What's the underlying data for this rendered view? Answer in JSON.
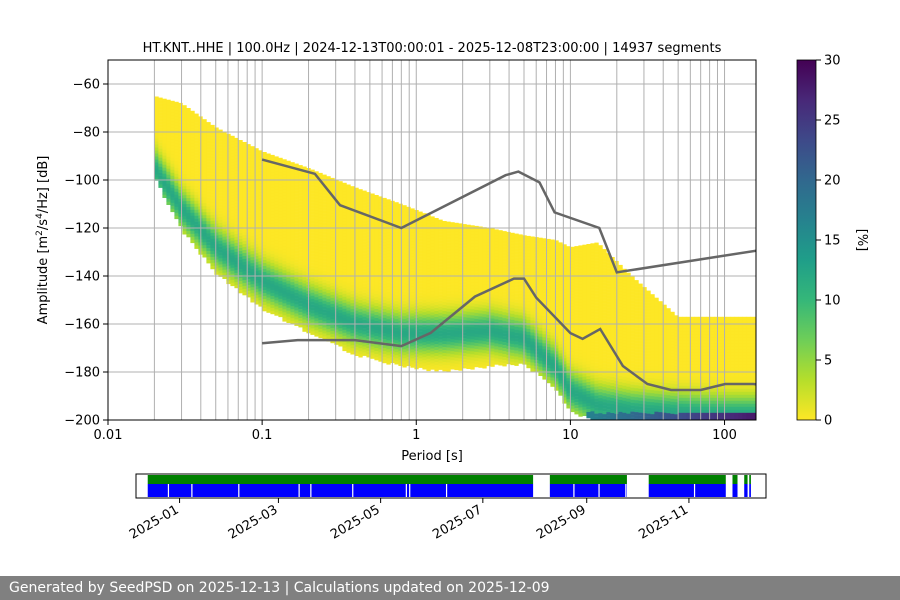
{
  "chart_data": {
    "type": "heatmap",
    "title": "HT.KNT..HHE | 100.0Hz | 2024-12-13T00:00:01 - 2025-12-08T23:00:00 | 14937 segments",
    "xlabel": "Period [s]",
    "ylabel_parts": [
      "Amplitude [m",
      "2",
      "/s",
      "4",
      "/Hz] [dB]"
    ],
    "x_scale": "log",
    "xlim": [
      0.01,
      160
    ],
    "ylim": [
      -200,
      -50
    ],
    "x_ticks": [
      {
        "value": 0.01,
        "label": "0.01"
      },
      {
        "value": 0.1,
        "label": "0.1"
      },
      {
        "value": 1,
        "label": "1"
      },
      {
        "value": 10,
        "label": "10"
      },
      {
        "value": 100,
        "label": "100"
      }
    ],
    "y_ticks": [
      -200,
      -180,
      -160,
      -140,
      -120,
      -100,
      -80,
      -60
    ],
    "vertical_gridlines": [
      0.02,
      0.03,
      0.04,
      0.05,
      0.06,
      0.07,
      0.08,
      0.09,
      0.1,
      0.2,
      0.3,
      0.4,
      0.5,
      0.6,
      0.7,
      0.8,
      0.9,
      1,
      2,
      3,
      4,
      5,
      6,
      7,
      8,
      9,
      10,
      20,
      30,
      40,
      50,
      60,
      70,
      80,
      90,
      100
    ],
    "colorbar": {
      "label": "[%]",
      "min": 0,
      "max": 30,
      "ticks": [
        0,
        5,
        10,
        15,
        20,
        25,
        30
      ],
      "colors": [
        "#fde725",
        "#b5de2b",
        "#6ece58",
        "#35b779",
        "#1f9e89",
        "#26828e",
        "#31688e",
        "#3e4989",
        "#482878",
        "#440154"
      ]
    },
    "density_band": {
      "period": [
        0.02,
        0.03,
        0.05,
        0.1,
        0.2,
        0.4,
        0.8,
        1.5,
        3,
        5,
        8,
        10,
        15,
        25,
        50,
        100,
        160
      ],
      "peak_db": [
        -95,
        -112,
        -128,
        -142,
        -152,
        -160,
        -164,
        -164,
        -163,
        -166,
        -178,
        -188,
        -194,
        -196,
        -197,
        -198,
        -198
      ],
      "lower_db": [
        -98,
        -120,
        -138,
        -153,
        -163,
        -172,
        -177,
        -179,
        -177,
        -176,
        -186,
        -196,
        -200,
        -200,
        -200,
        -200,
        -200
      ],
      "upper_db": [
        -65,
        -68,
        -78,
        -88,
        -95,
        -103,
        -110,
        -117,
        -120,
        -123,
        -125,
        -128,
        -126,
        -140,
        -157,
        -157,
        -157
      ]
    },
    "nhnm": {
      "name": "",
      "period": [
        0.1,
        0.22,
        0.32,
        0.8,
        3.8,
        4.6,
        6.3,
        7.9,
        15.4,
        20,
        354.8
      ],
      "db": [
        -91.5,
        -97.4,
        -110.5,
        -120,
        -98,
        -96.5,
        -101,
        -113.5,
        -120,
        -138.5,
        -126
      ]
    },
    "nlnm": {
      "name": "",
      "period": [
        0.1,
        0.17,
        0.4,
        0.8,
        1.24,
        2.4,
        4.3,
        5,
        6,
        10,
        12,
        15.6,
        21.9,
        31.6,
        45,
        70,
        101,
        154,
        328
      ],
      "db": [
        -168,
        -166.7,
        -166.7,
        -169.2,
        -163.7,
        -148.6,
        -141.1,
        -141.1,
        -149,
        -163.8,
        -166.2,
        -162.1,
        -177.5,
        -185,
        -187.5,
        -187.5,
        -185,
        -185,
        -187.5
      ]
    },
    "data_availability": {
      "x_ticks": [
        "2025-01",
        "2025-03",
        "2025-05",
        "2025-07",
        "2025-09",
        "2025-11"
      ],
      "range": [
        "2024-12-06",
        "2025-12-17"
      ],
      "colors": {
        "available": "#0000ff",
        "processed": "#008000"
      },
      "segments": [
        [
          "2024-12-13",
          "2025-07-31"
        ],
        [
          "2025-08-10",
          "2025-09-25"
        ],
        [
          "2025-10-08",
          "2025-11-23"
        ],
        [
          "2025-11-27",
          "2025-11-30"
        ],
        [
          "2025-12-04",
          "2025-12-06"
        ],
        [
          "2025-12-07",
          "2025-12-08"
        ]
      ],
      "gaps": [
        "2024-12-25",
        "2025-01-08",
        "2025-02-05",
        "2025-03-13",
        "2025-03-20",
        "2025-04-14",
        "2025-05-16",
        "2025-05-18",
        "2025-06-09",
        "2025-08-24",
        "2025-09-08",
        "2025-09-24",
        "2025-11-04"
      ]
    }
  },
  "footer": {
    "text": "Generated by SeedPSD on 2025-12-13 | Calculations updated on 2025-12-09"
  }
}
